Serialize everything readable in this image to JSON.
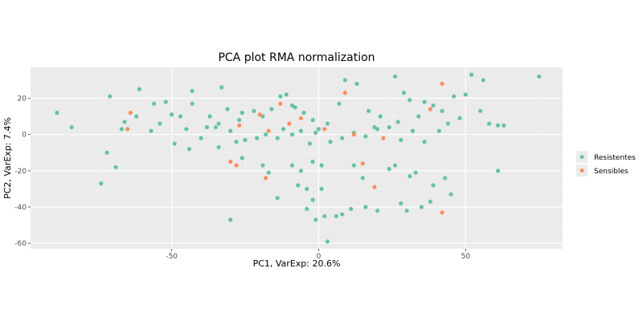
{
  "chart_data": {
    "type": "scatter",
    "title": "PCA plot RMA normalization",
    "xlabel": "PC1, VarExp: 20.6%",
    "ylabel": "PC2, VarExp: 7.4%",
    "xlim": [
      -98,
      83
    ],
    "ylim": [
      -63,
      37
    ],
    "x_ticks": [
      -50,
      0,
      50
    ],
    "y_ticks": [
      -60,
      -40,
      -20,
      0,
      20
    ],
    "grid": true,
    "legend_position": "right",
    "series": [
      {
        "name": "Resistentes",
        "color": "#66c2a5",
        "points": [
          [
            -89,
            12
          ],
          [
            -84,
            4
          ],
          [
            -71,
            21
          ],
          [
            -61,
            25
          ],
          [
            -56,
            17
          ],
          [
            -52,
            18
          ],
          [
            -47,
            10
          ],
          [
            -43,
            17
          ],
          [
            -43,
            24
          ],
          [
            -35,
            4
          ],
          [
            -33,
            26
          ],
          [
            -31,
            14
          ],
          [
            -26,
            12
          ],
          [
            -22,
            13
          ],
          [
            -19,
            10
          ],
          [
            -16,
            14
          ],
          [
            -13,
            21
          ],
          [
            -11,
            22
          ],
          [
            -8,
            15
          ],
          [
            -5,
            12
          ],
          [
            -2,
            8
          ],
          [
            -1,
            1
          ],
          [
            3,
            6
          ],
          [
            7,
            17
          ],
          [
            9,
            30
          ],
          [
            13,
            28
          ],
          [
            17,
            13
          ],
          [
            21,
            10
          ],
          [
            26,
            32
          ],
          [
            29,
            23
          ],
          [
            31,
            19
          ],
          [
            36,
            18
          ],
          [
            39,
            16
          ],
          [
            42,
            13
          ],
          [
            46,
            21
          ],
          [
            52,
            33
          ],
          [
            56,
            30
          ],
          [
            61,
            5
          ],
          [
            75,
            32
          ],
          [
            -66,
            7
          ],
          [
            -67,
            3
          ],
          [
            -62,
            10
          ],
          [
            -57,
            2
          ],
          [
            -54,
            6
          ],
          [
            -50,
            11
          ],
          [
            -45,
            3
          ],
          [
            -40,
            -2
          ],
          [
            -38,
            4
          ],
          [
            -34,
            6
          ],
          [
            -30,
            2
          ],
          [
            -28,
            -4
          ],
          [
            -25,
            -3
          ],
          [
            -21,
            -2
          ],
          [
            -18,
            0
          ],
          [
            -14,
            -2
          ],
          [
            -12,
            3
          ],
          [
            -9,
            0
          ],
          [
            -6,
            2
          ],
          [
            -3,
            -5
          ],
          [
            0,
            3
          ],
          [
            4,
            -4
          ],
          [
            8,
            -2
          ],
          [
            12,
            1
          ],
          [
            16,
            -1
          ],
          [
            20,
            3
          ],
          [
            24,
            4
          ],
          [
            28,
            -3
          ],
          [
            32,
            2
          ],
          [
            36,
            -4
          ],
          [
            41,
            2
          ],
          [
            44,
            6
          ],
          [
            48,
            9
          ],
          [
            55,
            13
          ],
          [
            58,
            6
          ],
          [
            63,
            5
          ],
          [
            -72,
            -10
          ],
          [
            -69,
            -18
          ],
          [
            -74,
            -27
          ],
          [
            -49,
            -5
          ],
          [
            -44,
            -8
          ],
          [
            -34,
            -7
          ],
          [
            -26,
            -13
          ],
          [
            -19,
            -17
          ],
          [
            -17,
            -21
          ],
          [
            -14,
            -35
          ],
          [
            -9,
            -17
          ],
          [
            -6,
            -20
          ],
          [
            -4,
            -30
          ],
          [
            -2,
            -36
          ],
          [
            -1,
            -47
          ],
          [
            1,
            -17
          ],
          [
            2,
            -45
          ],
          [
            3,
            -59
          ],
          [
            8,
            -44
          ],
          [
            11,
            -41
          ],
          [
            12,
            -17
          ],
          [
            15,
            -24
          ],
          [
            20,
            -42
          ],
          [
            24,
            -19
          ],
          [
            26,
            -17
          ],
          [
            28,
            -38
          ],
          [
            31,
            -23
          ],
          [
            33,
            -21
          ],
          [
            35,
            -40
          ],
          [
            38,
            -37
          ],
          [
            43,
            -24
          ],
          [
            45,
            -33
          ],
          [
            61,
            -20
          ],
          [
            -30,
            -47
          ],
          [
            -7,
            -28
          ],
          [
            -4,
            -41
          ],
          [
            1,
            -30
          ],
          [
            6,
            -45
          ],
          [
            16,
            -40
          ],
          [
            30,
            -42
          ],
          [
            39,
            -28
          ],
          [
            -37,
            10
          ],
          [
            -9,
            16
          ],
          [
            -27,
            8
          ],
          [
            -2,
            -15
          ],
          [
            19,
            4
          ],
          [
            34,
            10
          ],
          [
            50,
            22
          ],
          [
            27,
            7
          ]
        ]
      },
      {
        "name": "Sensibles",
        "color": "#fc8d62",
        "points": [
          [
            -64,
            12
          ],
          [
            -65,
            3
          ],
          [
            -30,
            -15
          ],
          [
            -27,
            5
          ],
          [
            -20,
            11
          ],
          [
            -17,
            2
          ],
          [
            -13,
            17
          ],
          [
            -10,
            6
          ],
          [
            -6,
            9
          ],
          [
            -28,
            -17
          ],
          [
            -18,
            -24
          ],
          [
            2,
            3
          ],
          [
            9,
            23
          ],
          [
            12,
            0
          ],
          [
            15,
            -16
          ],
          [
            19,
            -29
          ],
          [
            22,
            -2
          ],
          [
            38,
            14
          ],
          [
            42,
            28
          ],
          [
            42,
            -43
          ]
        ]
      }
    ]
  }
}
